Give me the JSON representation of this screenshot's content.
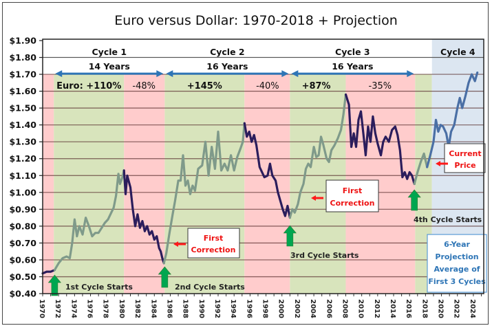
{
  "chart_data": {
    "type": "line",
    "title": "Euro versus Dollar: 1970-2018 + Projection",
    "xlabel": "",
    "ylabel": "",
    "xlim": [
      1970,
      2025.3
    ],
    "ylim": [
      0.4,
      1.9
    ],
    "y_ticks": [
      "$1.90",
      "$1.80",
      "$1.70",
      "$1.60",
      "$1.50",
      "$1.40",
      "$1.30",
      "$1.20",
      "$1.10",
      "$1.00",
      "$0.90",
      "$0.80",
      "$0.70",
      "$0.60",
      "$0.50",
      "$0.40"
    ],
    "y_tick_values": [
      1.9,
      1.8,
      1.7,
      1.6,
      1.5,
      1.4,
      1.3,
      1.2,
      1.1,
      1.0,
      0.9,
      0.8,
      0.7,
      0.6,
      0.5,
      0.4
    ],
    "x_ticks": [
      "1970",
      "1972",
      "1974",
      "1976",
      "1978",
      "1980",
      "1982",
      "1984",
      "1986",
      "1988",
      "1990",
      "1992",
      "1994",
      "1996",
      "1998",
      "2000",
      "2002",
      "2004",
      "2006",
      "2008",
      "2010",
      "2012",
      "2014",
      "2016",
      "2018",
      "2020",
      "2022",
      "2024"
    ],
    "grid": true,
    "colors": {
      "rise": "#7f9a8a",
      "fall": "#2b1d5c",
      "projection": "#4a6fa5",
      "green_band": "#d8e4bc",
      "red_band": "#ffcccc",
      "blue_band": "#dce6f1",
      "arrow_blue": "#2e75b6",
      "start_arrow": "#00a650",
      "red_text": "#ff1a1a"
    },
    "bands": [
      {
        "from": 1970.0,
        "to": 1971.4,
        "kind": "red"
      },
      {
        "from": 1971.4,
        "to": 1980.2,
        "kind": "green"
      },
      {
        "from": 1980.2,
        "to": 1985.3,
        "kind": "red"
      },
      {
        "from": 1985.3,
        "to": 1995.3,
        "kind": "green"
      },
      {
        "from": 1995.3,
        "to": 2001.0,
        "kind": "red"
      },
      {
        "from": 2001.0,
        "to": 2008.0,
        "kind": "green"
      },
      {
        "from": 2008.0,
        "to": 2016.7,
        "kind": "red"
      },
      {
        "from": 2016.7,
        "to": 2018.8,
        "kind": "green"
      },
      {
        "from": 2018.8,
        "to": 2025.3,
        "kind": "blue"
      }
    ],
    "series": [
      {
        "name": "Pre-cycle",
        "style": "fall",
        "points": [
          [
            1970.0,
            0.52
          ],
          [
            1970.5,
            0.53
          ],
          [
            1971.0,
            0.53
          ],
          [
            1971.5,
            0.54
          ]
        ]
      },
      {
        "name": "Cycle 1 Rise",
        "style": "rise",
        "points": [
          [
            1971.5,
            0.54
          ],
          [
            1972.0,
            0.58
          ],
          [
            1972.5,
            0.61
          ],
          [
            1973.0,
            0.62
          ],
          [
            1973.4,
            0.61
          ],
          [
            1973.7,
            0.7
          ],
          [
            1974.0,
            0.84
          ],
          [
            1974.3,
            0.74
          ],
          [
            1974.6,
            0.8
          ],
          [
            1975.0,
            0.75
          ],
          [
            1975.4,
            0.85
          ],
          [
            1975.8,
            0.8
          ],
          [
            1976.2,
            0.74
          ],
          [
            1976.6,
            0.76
          ],
          [
            1977.0,
            0.76
          ],
          [
            1977.4,
            0.79
          ],
          [
            1977.8,
            0.82
          ],
          [
            1978.2,
            0.84
          ],
          [
            1978.6,
            0.88
          ],
          [
            1978.9,
            0.91
          ],
          [
            1979.2,
            0.98
          ],
          [
            1979.5,
            1.11
          ],
          [
            1979.7,
            1.05
          ],
          [
            1980.0,
            1.09
          ],
          [
            1980.2,
            1.13
          ]
        ]
      },
      {
        "name": "Cycle 1 Fall",
        "style": "fall",
        "points": [
          [
            1980.2,
            1.13
          ],
          [
            1980.4,
            0.99
          ],
          [
            1980.6,
            1.1
          ],
          [
            1981.0,
            1.03
          ],
          [
            1981.3,
            0.9
          ],
          [
            1981.6,
            0.8
          ],
          [
            1981.9,
            0.87
          ],
          [
            1982.2,
            0.79
          ],
          [
            1982.5,
            0.83
          ],
          [
            1982.8,
            0.77
          ],
          [
            1983.1,
            0.8
          ],
          [
            1983.4,
            0.75
          ],
          [
            1983.7,
            0.77
          ],
          [
            1984.0,
            0.72
          ],
          [
            1984.3,
            0.74
          ],
          [
            1984.6,
            0.67
          ],
          [
            1984.8,
            0.65
          ],
          [
            1985.0,
            0.61
          ],
          [
            1985.2,
            0.58
          ]
        ]
      },
      {
        "name": "Cycle 2 Rise",
        "style": "rise",
        "points": [
          [
            1985.2,
            0.58
          ],
          [
            1985.5,
            0.64
          ],
          [
            1985.9,
            0.76
          ],
          [
            1986.3,
            0.87
          ],
          [
            1986.6,
            0.95
          ],
          [
            1987.0,
            1.07
          ],
          [
            1987.3,
            1.07
          ],
          [
            1987.6,
            1.22
          ],
          [
            1987.9,
            1.04
          ],
          [
            1988.2,
            1.07
          ],
          [
            1988.5,
            0.99
          ],
          [
            1988.8,
            1.04
          ],
          [
            1989.1,
            1.01
          ],
          [
            1989.5,
            1.14
          ],
          [
            1990.0,
            1.16
          ],
          [
            1990.4,
            1.3
          ],
          [
            1990.8,
            1.1
          ],
          [
            1991.2,
            1.27
          ],
          [
            1991.6,
            1.14
          ],
          [
            1992.0,
            1.36
          ],
          [
            1992.4,
            1.13
          ],
          [
            1992.8,
            1.17
          ],
          [
            1993.2,
            1.13
          ],
          [
            1993.6,
            1.22
          ],
          [
            1994.0,
            1.13
          ],
          [
            1994.4,
            1.21
          ],
          [
            1994.8,
            1.26
          ],
          [
            1995.1,
            1.3
          ],
          [
            1995.3,
            1.41
          ]
        ]
      },
      {
        "name": "Cycle 2 Fall",
        "style": "fall",
        "points": [
          [
            1995.3,
            1.41
          ],
          [
            1995.6,
            1.33
          ],
          [
            1995.9,
            1.36
          ],
          [
            1996.2,
            1.3
          ],
          [
            1996.5,
            1.34
          ],
          [
            1996.8,
            1.28
          ],
          [
            1997.2,
            1.15
          ],
          [
            1997.5,
            1.12
          ],
          [
            1997.8,
            1.09
          ],
          [
            1998.2,
            1.1
          ],
          [
            1998.5,
            1.17
          ],
          [
            1998.8,
            1.1
          ],
          [
            1999.2,
            1.07
          ],
          [
            1999.5,
            1.0
          ],
          [
            1999.8,
            0.95
          ],
          [
            2000.1,
            0.9
          ],
          [
            2000.4,
            0.86
          ],
          [
            2000.7,
            0.92
          ],
          [
            2001.0,
            0.85
          ]
        ]
      },
      {
        "name": "Cycle 3 Rise",
        "style": "rise",
        "points": [
          [
            2001.0,
            0.85
          ],
          [
            2001.3,
            0.9
          ],
          [
            2001.6,
            0.88
          ],
          [
            2002.0,
            0.93
          ],
          [
            2002.3,
            1.0
          ],
          [
            2002.7,
            1.05
          ],
          [
            2003.0,
            1.14
          ],
          [
            2003.3,
            1.17
          ],
          [
            2003.6,
            1.15
          ],
          [
            2004.0,
            1.27
          ],
          [
            2004.3,
            1.21
          ],
          [
            2004.6,
            1.22
          ],
          [
            2004.9,
            1.33
          ],
          [
            2005.2,
            1.28
          ],
          [
            2005.6,
            1.2
          ],
          [
            2005.9,
            1.18
          ],
          [
            2006.2,
            1.25
          ],
          [
            2006.6,
            1.28
          ],
          [
            2007.0,
            1.32
          ],
          [
            2007.4,
            1.37
          ],
          [
            2007.7,
            1.46
          ],
          [
            2008.0,
            1.58
          ]
        ]
      },
      {
        "name": "Cycle 3 Fall",
        "style": "fall",
        "points": [
          [
            2008.0,
            1.58
          ],
          [
            2008.4,
            1.52
          ],
          [
            2008.7,
            1.27
          ],
          [
            2009.0,
            1.35
          ],
          [
            2009.3,
            1.27
          ],
          [
            2009.6,
            1.43
          ],
          [
            2009.9,
            1.48
          ],
          [
            2010.2,
            1.35
          ],
          [
            2010.5,
            1.22
          ],
          [
            2010.8,
            1.39
          ],
          [
            2011.1,
            1.3
          ],
          [
            2011.4,
            1.45
          ],
          [
            2011.7,
            1.35
          ],
          [
            2012.0,
            1.29
          ],
          [
            2012.4,
            1.22
          ],
          [
            2012.7,
            1.3
          ],
          [
            2013.0,
            1.33
          ],
          [
            2013.4,
            1.3
          ],
          [
            2013.8,
            1.37
          ],
          [
            2014.2,
            1.39
          ],
          [
            2014.5,
            1.34
          ],
          [
            2014.8,
            1.25
          ],
          [
            2015.1,
            1.09
          ],
          [
            2015.4,
            1.12
          ],
          [
            2015.7,
            1.08
          ],
          [
            2016.0,
            1.12
          ],
          [
            2016.3,
            1.1
          ],
          [
            2016.6,
            1.05
          ]
        ]
      },
      {
        "name": "Cycle 4 Rise",
        "style": "rise",
        "points": [
          [
            2016.6,
            1.05
          ],
          [
            2017.0,
            1.12
          ],
          [
            2017.4,
            1.18
          ],
          [
            2017.8,
            1.23
          ],
          [
            2018.2,
            1.15
          ]
        ]
      },
      {
        "name": "Projection",
        "style": "projection",
        "points": [
          [
            2018.2,
            1.15
          ],
          [
            2018.6,
            1.22
          ],
          [
            2019.0,
            1.3
          ],
          [
            2019.3,
            1.43
          ],
          [
            2019.6,
            1.36
          ],
          [
            2019.9,
            1.4
          ],
          [
            2020.2,
            1.39
          ],
          [
            2020.6,
            1.35
          ],
          [
            2020.9,
            1.27
          ],
          [
            2021.2,
            1.36
          ],
          [
            2021.6,
            1.4
          ],
          [
            2022.0,
            1.5
          ],
          [
            2022.3,
            1.56
          ],
          [
            2022.6,
            1.5
          ],
          [
            2023.0,
            1.57
          ],
          [
            2023.4,
            1.65
          ],
          [
            2023.8,
            1.7
          ],
          [
            2024.2,
            1.66
          ],
          [
            2024.5,
            1.71
          ]
        ]
      }
    ],
    "header": {
      "cycles": [
        {
          "label": "Cycle 1",
          "years": "14 Years",
          "from": 1971.4,
          "to": 1985.3
        },
        {
          "label": "Cycle 2",
          "years": "16 Years",
          "from": 1985.3,
          "to": 2001.0
        },
        {
          "label": "Cycle 3",
          "years": "16 Years",
          "from": 2001.0,
          "to": 2016.7
        },
        {
          "label": "Cycle 4",
          "years": "",
          "from": 2018.8,
          "to": 2025.3
        }
      ]
    },
    "changes": [
      {
        "text": "Euro: +110%",
        "kind": "rise",
        "at": 1975.8
      },
      {
        "text": "-48%",
        "kind": "fall",
        "at": 1982.7
      },
      {
        "text": "+145%",
        "kind": "rise",
        "at": 1990.3
      },
      {
        "text": "-40%",
        "kind": "fall",
        "at": 1998.2
      },
      {
        "text": "+87%",
        "kind": "rise",
        "at": 2004.3
      },
      {
        "text": "-35%",
        "kind": "fall",
        "at": 2012.3
      }
    ],
    "annotations": {
      "cycle_starts": [
        {
          "text": "1st Cycle Starts",
          "at": 1971.5
        },
        {
          "text": "2nd Cycle Starts",
          "at": 1985.3
        },
        {
          "text": "3rd Cycle Starts",
          "at": 2001.0
        },
        {
          "text": "4th Cycle Starts",
          "at": 2016.6
        }
      ],
      "first_correction_1": [
        "First",
        "Correction"
      ],
      "first_correction_2": [
        "First",
        "Correction"
      ],
      "current_price": [
        "Current",
        "Price"
      ],
      "projection_note": [
        "6-Year",
        "Projection",
        "Average of",
        "First 3 Cycles"
      ]
    }
  }
}
